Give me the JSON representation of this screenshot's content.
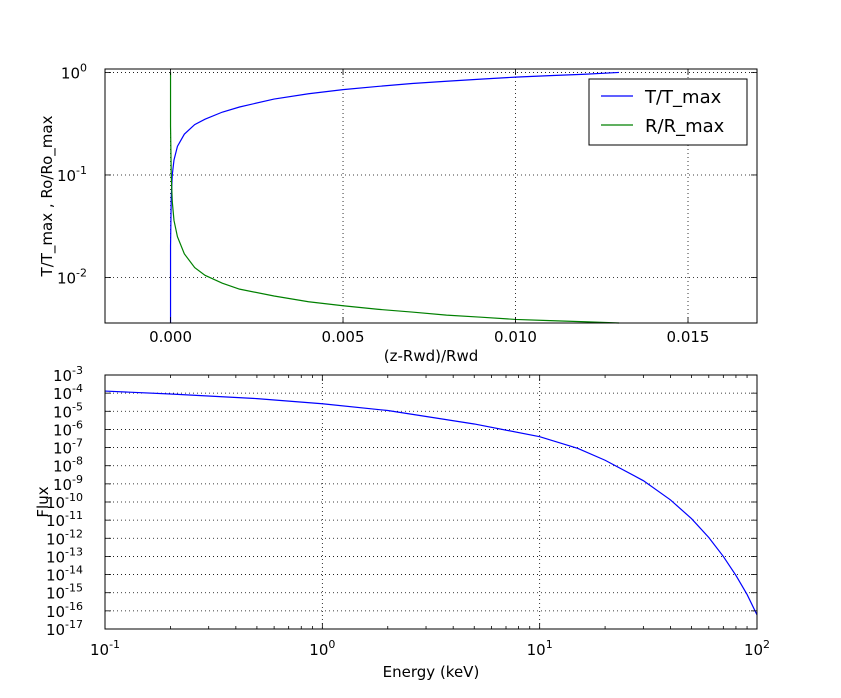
{
  "colors": {
    "blue": "#0000ff",
    "green": "#008000"
  },
  "chart_data": [
    {
      "type": "line",
      "xlabel": "(z-Rwd)/Rwd",
      "ylabel": "T/T_max , Ro/Ro_max",
      "yscale": "log",
      "xlim": [
        -0.0019,
        0.017
      ],
      "ylim": [
        0.0036,
        1.08
      ],
      "grid": true,
      "legend_position": "top-right",
      "xticks": [
        "0.000",
        "0.005",
        "0.010",
        "0.015"
      ],
      "xtick_values": [
        0,
        0.005,
        0.01,
        0.015
      ],
      "yticks": [
        {
          "base": "10",
          "exp": "0"
        },
        {
          "base": "10",
          "exp": "-1"
        },
        {
          "base": "10",
          "exp": "-2"
        }
      ],
      "ytick_values": [
        1,
        0.1,
        0.01
      ],
      "series": [
        {
          "name": "T/T_max",
          "color": "#0000ff",
          "points": [
            [
              0.0,
              0.0036
            ],
            [
              0.0,
              0.02
            ],
            [
              2e-05,
              0.06
            ],
            [
              5e-05,
              0.1
            ],
            [
              0.0001,
              0.14
            ],
            [
              0.0002,
              0.19
            ],
            [
              0.0004,
              0.25
            ],
            [
              0.0007,
              0.31
            ],
            [
              0.001,
              0.35
            ],
            [
              0.0015,
              0.41
            ],
            [
              0.002,
              0.46
            ],
            [
              0.003,
              0.55
            ],
            [
              0.004,
              0.62
            ],
            [
              0.005,
              0.68
            ],
            [
              0.006,
              0.73
            ],
            [
              0.007,
              0.78
            ],
            [
              0.008,
              0.82
            ],
            [
              0.009,
              0.86
            ],
            [
              0.01,
              0.9
            ],
            [
              0.011,
              0.93
            ],
            [
              0.012,
              0.96
            ],
            [
              0.013,
              1.0
            ]
          ]
        },
        {
          "name": "R/R_max",
          "color": "#008000",
          "points": [
            [
              0.0,
              1.0
            ],
            [
              0.0,
              0.3
            ],
            [
              2e-05,
              0.1
            ],
            [
              5e-05,
              0.055
            ],
            [
              0.0001,
              0.036
            ],
            [
              0.0002,
              0.025
            ],
            [
              0.0004,
              0.017
            ],
            [
              0.0007,
              0.0125
            ],
            [
              0.001,
              0.0105
            ],
            [
              0.0015,
              0.0088
            ],
            [
              0.002,
              0.0077
            ],
            [
              0.003,
              0.0066
            ],
            [
              0.004,
              0.0058
            ],
            [
              0.005,
              0.0053
            ],
            [
              0.006,
              0.0049
            ],
            [
              0.007,
              0.0046
            ],
            [
              0.008,
              0.0043
            ],
            [
              0.009,
              0.0041
            ],
            [
              0.01,
              0.0039
            ],
            [
              0.011,
              0.0038
            ],
            [
              0.012,
              0.0037
            ],
            [
              0.013,
              0.0036
            ]
          ]
        }
      ]
    },
    {
      "type": "line",
      "xlabel": "Energy (keV)",
      "ylabel": "Flux",
      "xscale": "log",
      "yscale": "log",
      "xlim": [
        0.1,
        100
      ],
      "ylim": [
        1e-17,
        0.001
      ],
      "grid": true,
      "xticks": [
        {
          "base": "10",
          "exp": "-1"
        },
        {
          "base": "10",
          "exp": "0"
        },
        {
          "base": "10",
          "exp": "1"
        },
        {
          "base": "10",
          "exp": "2"
        }
      ],
      "xtick_values": [
        0.1,
        1,
        10,
        100
      ],
      "yticks": [
        {
          "base": "10",
          "exp": "-3"
        },
        {
          "base": "10",
          "exp": "-4"
        },
        {
          "base": "10",
          "exp": "-5"
        },
        {
          "base": "10",
          "exp": "-6"
        },
        {
          "base": "10",
          "exp": "-7"
        },
        {
          "base": "10",
          "exp": "-8"
        },
        {
          "base": "10",
          "exp": "-9"
        },
        {
          "base": "10",
          "exp": "-10"
        },
        {
          "base": "10",
          "exp": "-11"
        },
        {
          "base": "10",
          "exp": "-12"
        },
        {
          "base": "10",
          "exp": "-13"
        },
        {
          "base": "10",
          "exp": "-14"
        },
        {
          "base": "10",
          "exp": "-15"
        },
        {
          "base": "10",
          "exp": "-16"
        },
        {
          "base": "10",
          "exp": "-17"
        }
      ],
      "ytick_values": [
        0.001,
        0.0001,
        1e-05,
        1e-06,
        1e-07,
        1e-08,
        1e-09,
        1e-10,
        1e-11,
        1e-12,
        1e-13,
        1e-14,
        1e-15,
        1e-16,
        1e-17
      ],
      "series": [
        {
          "color": "#0000ff",
          "points": [
            [
              0.1,
              0.00013
            ],
            [
              0.2,
              9e-05
            ],
            [
              0.5,
              5e-05
            ],
            [
              1.0,
              2.6e-05
            ],
            [
              2.0,
              1.1e-05
            ],
            [
              5.0,
              2e-06
            ],
            [
              10,
              4e-07
            ],
            [
              15,
              9e-08
            ],
            [
              20,
              2e-08
            ],
            [
              30,
              1.5e-09
            ],
            [
              40,
              1.3e-10
            ],
            [
              50,
              1.2e-11
            ],
            [
              60,
              1.1e-12
            ],
            [
              70,
              1e-13
            ],
            [
              80,
              9e-15
            ],
            [
              90,
              8e-16
            ],
            [
              100,
              6e-17
            ]
          ]
        }
      ]
    }
  ]
}
